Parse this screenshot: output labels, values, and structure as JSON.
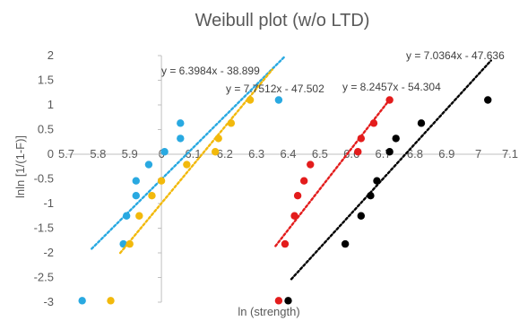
{
  "chart_data": {
    "type": "scatter",
    "title": "Weibull plot (w/o LTD)",
    "xlabel": "ln (strength)",
    "ylabel": "lnln [1/(1-F)]",
    "xlim": [
      5.7,
      7.1
    ],
    "ylim": [
      -3,
      2
    ],
    "x_ticks": [
      "5.7",
      "5.8",
      "5.9",
      "6",
      "6.1",
      "6.2",
      "6.3",
      "6.4",
      "6.5",
      "6.6",
      "6.7",
      "6.8",
      "6.9",
      "7",
      "7.1"
    ],
    "y_ticks": [
      "2",
      "1.5",
      "1",
      "0.5",
      "0",
      "-0.5",
      "-1",
      "-1.5",
      "-2",
      "-2.5",
      "-3"
    ],
    "grid": false,
    "legend": "none",
    "series": [
      {
        "color": "#29a9e1",
        "points": [
          [
            5.75,
            -2.97
          ],
          [
            5.88,
            -1.82
          ],
          [
            5.89,
            -1.25
          ],
          [
            5.92,
            -0.84
          ],
          [
            5.92,
            -0.54
          ],
          [
            5.96,
            -0.21
          ],
          [
            6.01,
            0.05
          ],
          [
            6.06,
            0.32
          ],
          [
            6.06,
            0.63
          ],
          [
            6.37,
            1.1
          ]
        ],
        "trendline": {
          "slope": 6.3984,
          "intercept": -38.899,
          "x_range": [
            5.78,
            6.39
          ],
          "label": "y = 6.3984x - 38.899"
        }
      },
      {
        "color": "#f2b90c",
        "points": [
          [
            5.84,
            -2.97
          ],
          [
            5.9,
            -1.82
          ],
          [
            5.93,
            -1.25
          ],
          [
            5.97,
            -0.84
          ],
          [
            6.0,
            -0.54
          ],
          [
            6.08,
            -0.21
          ],
          [
            6.17,
            0.05
          ],
          [
            6.18,
            0.32
          ],
          [
            6.22,
            0.63
          ],
          [
            6.28,
            1.1
          ]
        ],
        "trendline": {
          "slope": 7.7512,
          "intercept": -47.502,
          "x_range": [
            5.87,
            6.35
          ],
          "label": "y = 7.7512x - 47.502"
        }
      },
      {
        "color": "#e31c1c",
        "points": [
          [
            6.37,
            -2.97
          ],
          [
            6.39,
            -1.82
          ],
          [
            6.42,
            -1.25
          ],
          [
            6.43,
            -0.84
          ],
          [
            6.45,
            -0.54
          ],
          [
            6.47,
            -0.21
          ],
          [
            6.62,
            0.05
          ],
          [
            6.63,
            0.32
          ],
          [
            6.67,
            0.63
          ],
          [
            6.72,
            1.1
          ]
        ],
        "trendline": {
          "slope": 8.2457,
          "intercept": -54.304,
          "x_range": [
            6.36,
            6.72
          ],
          "label": "y = 8.2457x - 54.304"
        }
      },
      {
        "color": "#000000",
        "points": [
          [
            6.4,
            -2.97
          ],
          [
            6.58,
            -1.82
          ],
          [
            6.63,
            -1.25
          ],
          [
            6.66,
            -0.84
          ],
          [
            6.68,
            -0.54
          ],
          [
            6.72,
            0.05
          ],
          [
            6.74,
            0.32
          ],
          [
            6.82,
            0.63
          ],
          [
            7.03,
            1.1
          ]
        ],
        "trendline": {
          "slope": 7.0364,
          "intercept": -47.636,
          "x_range": [
            6.41,
            7.04
          ],
          "label": "y = 7.0364x - 47.636"
        }
      }
    ]
  }
}
